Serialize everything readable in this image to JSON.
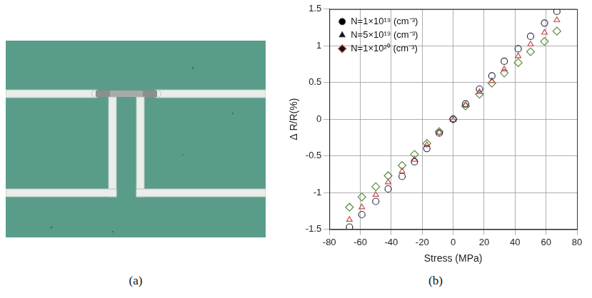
{
  "panel_labels": [
    "(a)",
    "(b)"
  ],
  "chart_data": {
    "type": "scatter",
    "x_label": "Stress (MPa)",
    "y_label": "Δ R/R(%)",
    "x": [
      -67,
      -59,
      -50,
      -42,
      -33,
      -25,
      -17,
      -9,
      0,
      8,
      17,
      25,
      33,
      42,
      50,
      59,
      67
    ],
    "series": [
      {
        "name": "N=1×10¹⁹ (cm⁻³)",
        "color": "#2e3148",
        "marker": "circle",
        "values": [
          -1.47,
          -1.3,
          -1.12,
          -0.95,
          -0.78,
          -0.58,
          -0.4,
          -0.19,
          0,
          0.21,
          0.41,
          0.59,
          0.79,
          0.96,
          1.13,
          1.31,
          1.47
        ]
      },
      {
        "name": "N=5×10¹⁹ (cm⁻³)",
        "color": "#c0504d",
        "marker": "triangle",
        "values": [
          -1.37,
          -1.2,
          -1.03,
          -0.86,
          -0.71,
          -0.55,
          -0.35,
          -0.18,
          -0.01,
          0.19,
          0.37,
          0.52,
          0.68,
          0.86,
          1.02,
          1.18,
          1.35
        ]
      },
      {
        "name": "N=1×10²⁰ (cm⁻³)",
        "color": "#5b8c3e",
        "marker": "diamond",
        "values": [
          -1.2,
          -1.06,
          -0.92,
          -0.77,
          -0.63,
          -0.48,
          -0.33,
          -0.17,
          0,
          0.18,
          0.34,
          0.49,
          0.63,
          0.77,
          0.92,
          1.06,
          1.2
        ]
      }
    ],
    "xlim": [
      -80,
      80
    ],
    "xticks": [
      -80,
      -60,
      -40,
      -20,
      0,
      20,
      40,
      60,
      80
    ],
    "ylim": [
      -1.5,
      1.5
    ],
    "yticks": [
      -1.5,
      -1,
      -0.5,
      0,
      0.5,
      1,
      1.5
    ],
    "grid": true,
    "legend": "upper left"
  }
}
